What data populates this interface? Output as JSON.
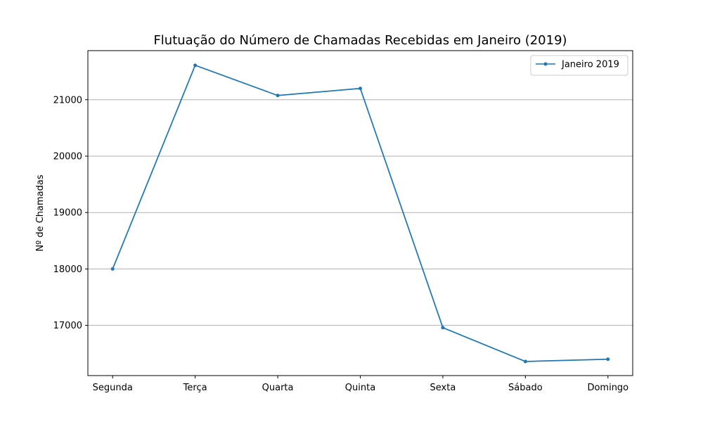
{
  "chart_data": {
    "type": "line",
    "title": "Flutuação do Número de Chamadas Recebidas em Janeiro (2019)",
    "xlabel": "",
    "ylabel": "Nº de Chamadas",
    "categories": [
      "Segunda",
      "Terça",
      "Quarta",
      "Quinta",
      "Sexta",
      "Sábado",
      "Domingo"
    ],
    "series": [
      {
        "name": "Janeiro 2019",
        "values": [
          18000,
          21610,
          21075,
          21200,
          16960,
          16360,
          16400
        ],
        "color": "#1f77b4",
        "marker": "point"
      }
    ],
    "yticks": [
      17000,
      18000,
      19000,
      20000,
      21000
    ],
    "ylim": [
      16110,
      21870
    ],
    "grid": "horizontal",
    "legend_position": "top-right"
  }
}
